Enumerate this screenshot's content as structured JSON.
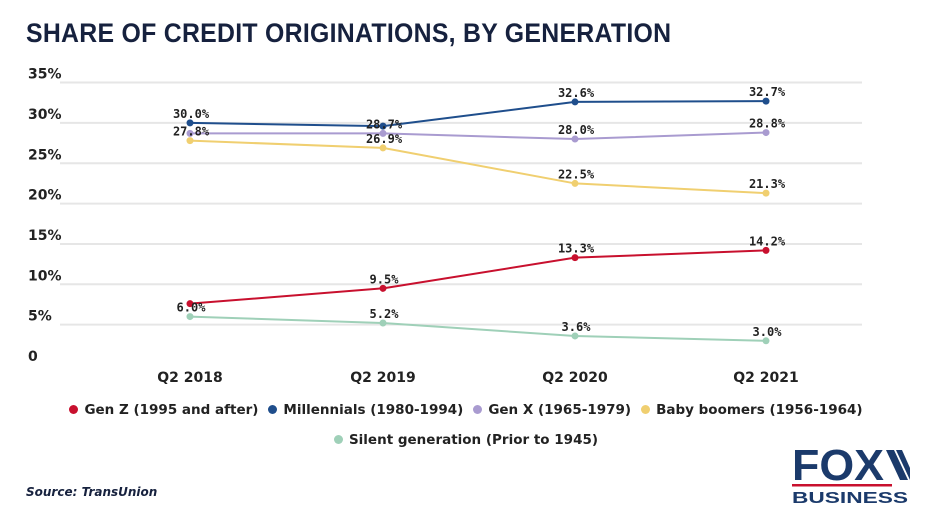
{
  "chart_data": {
    "type": "line",
    "title": "SHARE OF CREDIT ORIGINATIONS, BY GENERATION",
    "categories": [
      "Q2 2018",
      "Q2 2019",
      "Q2 2020",
      "Q2 2021"
    ],
    "ylim": [
      0,
      35
    ],
    "yticks": [
      "0",
      "5%",
      "10%",
      "15%",
      "20%",
      "25%",
      "30%",
      "35%"
    ],
    "grid": true,
    "legend_position": "bottom",
    "series": [
      {
        "name": "Gen Z (1995 and after)",
        "color": "#c8102e",
        "values": [
          7.6,
          9.5,
          13.3,
          14.2
        ],
        "labels": [
          null,
          "9.5%",
          "13.3%",
          "14.2%"
        ]
      },
      {
        "name": "Millennials (1980-1994)",
        "color": "#1f4e8c",
        "values": [
          30.0,
          29.6,
          32.6,
          32.7
        ],
        "labels": [
          "30.0%",
          null,
          "32.6%",
          "32.7%"
        ]
      },
      {
        "name": "Gen X (1965-1979)",
        "color": "#a99bd0",
        "values": [
          28.7,
          28.7,
          28.0,
          28.8
        ],
        "labels": [
          null,
          "28.7%",
          "28.0%",
          "28.8%"
        ]
      },
      {
        "name": "Baby boomers (1956-1964)",
        "color": "#f0cf70",
        "values": [
          27.8,
          26.9,
          22.5,
          21.3
        ],
        "labels": [
          "27.8%",
          "26.9%",
          "22.5%",
          "21.3%"
        ]
      },
      {
        "name": "Silent generation (Prior to 1945)",
        "color": "#9fd0b8",
        "values": [
          6.0,
          5.2,
          3.6,
          3.0
        ],
        "labels": [
          "6.0%",
          "5.2%",
          "3.6%",
          "3.0%"
        ]
      }
    ]
  },
  "source": "Source: TransUnion",
  "logo": {
    "text": "FOX",
    "sub": "BUSINESS",
    "color": "#1b3a6b",
    "accent": "#c8102e"
  }
}
